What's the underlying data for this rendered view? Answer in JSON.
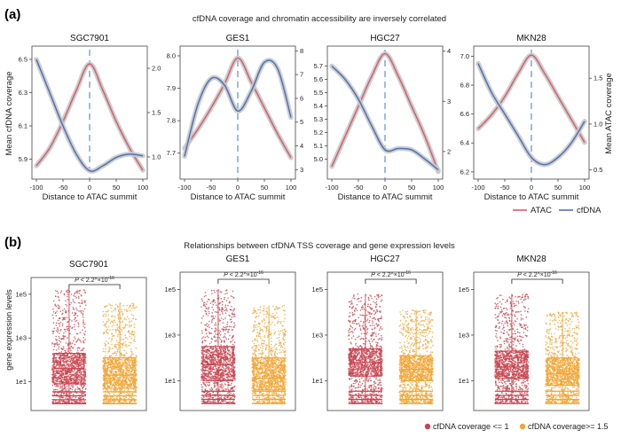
{
  "panel_a": {
    "label": "(a)",
    "title": "cfDNA coverage and chromatin accessibility are inversely correlated",
    "ylabel_left": "Mean cfDNA coverage",
    "ylabel_right": "Mean ATAC coverage",
    "xlabel": "Distance to ATAC summit",
    "legend": [
      {
        "name": "ATAC",
        "color": "#d2616d"
      },
      {
        "name": "cfDNA",
        "color": "#4f72b8"
      }
    ]
  },
  "panel_b": {
    "label": "(b)",
    "title": "Relationships between cfDNA TSS coverage and gene expression levels",
    "ylabel": "gene expression levels",
    "legend": [
      {
        "name": "cfDNA coverage <= 1",
        "color": "#c8444f"
      },
      {
        "name": "cfDNA coverage>= 1.5",
        "color": "#f3a432"
      }
    ]
  },
  "chart_data": [
    {
      "type": "line",
      "title": "SGC7901",
      "x_ticks": [
        -100,
        -50,
        0,
        50,
        100
      ],
      "left_axis": {
        "series": "cfDNA",
        "ylim": [
          5.78,
          6.58
        ],
        "ticks": [
          5.9,
          6.1,
          6.3,
          6.5
        ]
      },
      "right_axis": {
        "series": "ATAC",
        "ylim": [
          0.75,
          2.25
        ],
        "ticks": [
          1.0,
          1.5,
          2.0
        ]
      },
      "series": [
        {
          "name": "ATAC",
          "axis": "right",
          "x": [
            -100,
            -75,
            -50,
            -25,
            0,
            25,
            50,
            75,
            100
          ],
          "y": [
            0.9,
            1.1,
            1.4,
            1.75,
            2.05,
            1.75,
            1.4,
            1.1,
            0.85
          ]
        },
        {
          "name": "cfDNA",
          "axis": "left",
          "x": [
            -100,
            -75,
            -50,
            -25,
            0,
            25,
            50,
            75,
            100
          ],
          "y": [
            6.5,
            6.3,
            6.1,
            5.93,
            5.83,
            5.86,
            5.91,
            5.93,
            5.92
          ]
        }
      ]
    },
    {
      "type": "line",
      "title": "GES1",
      "x_ticks": [
        -100,
        -50,
        0,
        50,
        100
      ],
      "left_axis": {
        "series": "cfDNA",
        "ylim": [
          7.62,
          8.03
        ],
        "ticks": [
          7.7,
          7.8,
          7.9,
          8.0
        ]
      },
      "right_axis": {
        "series": "ATAC",
        "ylim": [
          2.6,
          8.2
        ],
        "ticks": [
          3,
          4,
          5,
          6,
          7,
          8
        ]
      },
      "series": [
        {
          "name": "ATAC",
          "axis": "right",
          "x": [
            -100,
            -75,
            -50,
            -25,
            0,
            25,
            50,
            75,
            100
          ],
          "y": [
            3.9,
            4.7,
            5.6,
            6.6,
            7.7,
            6.7,
            5.6,
            4.5,
            3.5
          ]
        },
        {
          "name": "cfDNA",
          "axis": "left",
          "x": [
            -100,
            -75,
            -50,
            -25,
            0,
            25,
            50,
            75,
            100
          ],
          "y": [
            7.69,
            7.85,
            7.93,
            7.91,
            7.83,
            7.89,
            7.98,
            7.96,
            7.81
          ]
        }
      ]
    },
    {
      "type": "line",
      "title": "HGC27",
      "x_ticks": [
        -100,
        -50,
        0,
        50,
        100
      ],
      "left_axis": {
        "series": "cfDNA",
        "ylim": [
          4.85,
          5.85
        ],
        "ticks": [
          5.0,
          5.1,
          5.2,
          5.3,
          5.4,
          5.5,
          5.6,
          5.7
        ]
      },
      "right_axis": {
        "series": "ATAC",
        "ylim": [
          1.45,
          4.1
        ],
        "ticks": [
          2,
          3,
          4
        ]
      },
      "series": [
        {
          "name": "ATAC",
          "axis": "right",
          "x": [
            -100,
            -75,
            -50,
            -25,
            0,
            25,
            50,
            75,
            100
          ],
          "y": [
            1.7,
            2.3,
            2.9,
            3.5,
            3.95,
            3.5,
            2.9,
            2.3,
            1.6
          ]
        },
        {
          "name": "cfDNA",
          "axis": "left",
          "x": [
            -100,
            -75,
            -50,
            -25,
            0,
            25,
            50,
            75,
            100
          ],
          "y": [
            5.7,
            5.6,
            5.45,
            5.25,
            5.07,
            5.08,
            5.07,
            5.0,
            4.92
          ]
        }
      ]
    },
    {
      "type": "line",
      "title": "MKN28",
      "x_ticks": [
        -100,
        -50,
        0,
        50,
        100
      ],
      "left_axis": {
        "series": "cfDNA",
        "ylim": [
          6.15,
          7.07
        ],
        "ticks": [
          6.2,
          6.4,
          6.6,
          6.8,
          7.0
        ]
      },
      "right_axis": {
        "series": "ATAC",
        "ylim": [
          0.4,
          1.85
        ],
        "ticks": [
          0.5,
          1.0,
          1.5
        ]
      },
      "series": [
        {
          "name": "ATAC",
          "axis": "right",
          "x": [
            -100,
            -75,
            -50,
            -25,
            0,
            25,
            50,
            75,
            100
          ],
          "y": [
            0.95,
            1.1,
            1.3,
            1.55,
            1.75,
            1.55,
            1.3,
            1.05,
            0.8
          ]
        },
        {
          "name": "cfDNA",
          "axis": "left",
          "x": [
            -100,
            -75,
            -50,
            -25,
            0,
            25,
            50,
            75,
            100
          ],
          "y": [
            6.95,
            6.75,
            6.6,
            6.45,
            6.3,
            6.25,
            6.3,
            6.4,
            6.55
          ]
        }
      ]
    },
    {
      "type": "box",
      "title": "SGC7901",
      "y_scale": "log10",
      "yticks": [
        "1e1",
        "1e3",
        "1e5"
      ],
      "pvalue": {
        "p": "P",
        "rest": " < 2.2",
        "sup": "-16",
        "times": "×10"
      },
      "groups": [
        {
          "name": "cfDNA coverage <= 1",
          "q1": 0.9,
          "median": 1.6,
          "q3": 2.3,
          "whisker_low": 0.0,
          "whisker_high": 5.2
        },
        {
          "name": "cfDNA coverage>= 1.5",
          "q1": 0.7,
          "median": 1.3,
          "q3": 2.1,
          "whisker_low": 0.0,
          "whisker_high": 4.6
        }
      ]
    },
    {
      "type": "box",
      "title": "GES1",
      "y_scale": "log10",
      "yticks": [
        "1e1",
        "1e3",
        "1e5"
      ],
      "pvalue": {
        "p": "P",
        "rest": " < 2.2",
        "sup": "-16",
        "times": "×10"
      },
      "groups": [
        {
          "name": "cfDNA coverage <= 1",
          "q1": 1.0,
          "median": 1.7,
          "q3": 2.5,
          "whisker_low": 0.0,
          "whisker_high": 5.0
        },
        {
          "name": "cfDNA coverage>= 1.5",
          "q1": 0.6,
          "median": 1.1,
          "q3": 2.0,
          "whisker_low": 0.0,
          "whisker_high": 4.3
        }
      ]
    },
    {
      "type": "box",
      "title": "HGC27",
      "y_scale": "log10",
      "yticks": [
        "1e1",
        "1e3",
        "1e5"
      ],
      "pvalue": {
        "p": "P",
        "rest": " < 2.2",
        "sup": "-16",
        "times": "×10"
      },
      "groups": [
        {
          "name": "cfDNA coverage <= 1",
          "q1": 1.2,
          "median": 1.8,
          "q3": 2.4,
          "whisker_low": 0.0,
          "whisker_high": 4.8
        },
        {
          "name": "cfDNA coverage>= 1.5",
          "q1": 1.0,
          "median": 1.5,
          "q3": 2.1,
          "whisker_low": 0.0,
          "whisker_high": 4.1
        }
      ]
    },
    {
      "type": "box",
      "title": "MKN28",
      "y_scale": "log10",
      "yticks": [
        "1e1",
        "1e3",
        "1e5"
      ],
      "pvalue": {
        "p": "P",
        "rest": " < 2.2",
        "sup": "-16",
        "times": "×10"
      },
      "groups": [
        {
          "name": "cfDNA coverage <= 1",
          "q1": 1.1,
          "median": 1.6,
          "q3": 2.3,
          "whisker_low": 0.0,
          "whisker_high": 4.8
        },
        {
          "name": "cfDNA coverage>= 1.5",
          "q1": 0.8,
          "median": 1.3,
          "q3": 2.0,
          "whisker_low": 0.0,
          "whisker_high": 4.0
        }
      ]
    }
  ]
}
